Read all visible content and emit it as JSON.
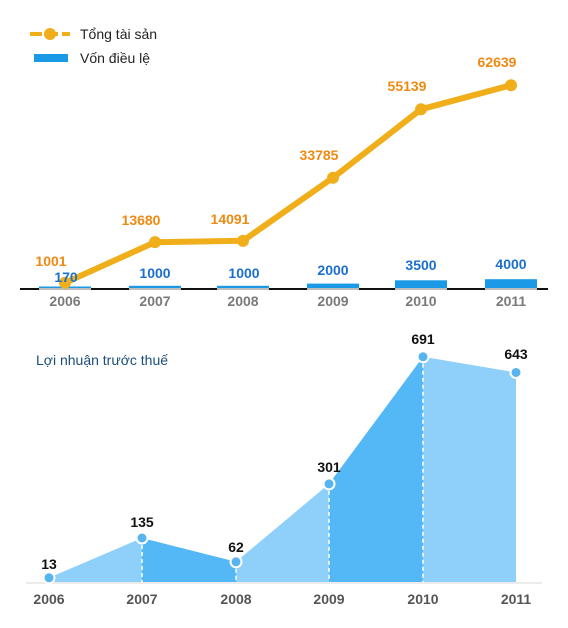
{
  "legend": {
    "total_assets_label": "Tổng tài sản",
    "charter_capital_label": "Vốn điều lệ"
  },
  "profit_chart_title": "Lợi nhuận trước thuế",
  "colors": {
    "assets_line": "#f0ae1a",
    "assets_label": "#ee8a12",
    "capital_bar": "#1a9ae6",
    "capital_label": "#1a6fd0",
    "profit_fill_light": "#8fd0fa",
    "profit_fill_dark": "#55b8f6",
    "profit_marker": "#58b4ee",
    "axis_label": "#7a7a7a",
    "profit_axis_label": "#555555"
  },
  "chart_data": [
    {
      "type": "line",
      "categories": [
        "2006",
        "2007",
        "2008",
        "2009",
        "2010",
        "2011"
      ],
      "series": [
        {
          "name": "Tổng tài sản",
          "type": "line",
          "values": [
            1001,
            13680,
            14091,
            33785,
            55139,
            62639
          ]
        },
        {
          "name": "Vốn điều lệ",
          "type": "bar",
          "values": [
            170,
            1000,
            1000,
            2000,
            3500,
            4000
          ]
        }
      ],
      "legend_position": "top-left",
      "grid": false
    },
    {
      "type": "area",
      "title": "Lợi nhuận trước thuế",
      "categories": [
        "2006",
        "2007",
        "2008",
        "2009",
        "2010",
        "2011"
      ],
      "values": [
        13,
        135,
        62,
        301,
        691,
        643
      ],
      "grid": false
    }
  ]
}
